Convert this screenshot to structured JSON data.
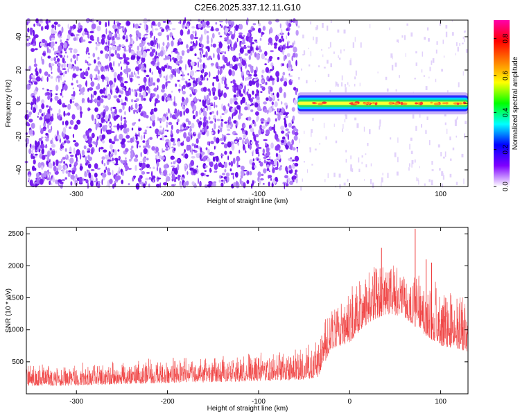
{
  "title": "C2E6.2025.337.12.11.G10",
  "chart_data": [
    {
      "type": "heatmap",
      "name": "spectrogram",
      "xlabel": "Height of straight line (km)",
      "ylabel": "Frequency (Hz)",
      "xlim": [
        -355,
        130
      ],
      "ylim": [
        -50,
        50
      ],
      "xticks": [
        -300,
        -200,
        -100,
        0,
        100
      ],
      "xtick_labels": [
        "-300",
        "-200",
        "-100",
        "0",
        "100"
      ],
      "yticks": [
        -40,
        -20,
        0,
        20,
        40
      ],
      "ytick_labels": [
        "-40",
        "-20",
        "0",
        "20",
        "40"
      ],
      "noise_region_end_km": -57,
      "signal_start_km": -57,
      "signal_frequency_hz": 0,
      "signal_halfwidth_hz": [
        1.6,
        3.0
      ],
      "colorbar": {
        "label": "Normalized spectral amplitude",
        "range": [
          0.0,
          0.9
        ],
        "ticks": [
          0.0,
          0.2,
          0.4,
          0.6,
          0.8
        ],
        "tick_labels": [
          "0.0",
          "0.2",
          "0.4",
          "0.6",
          "0.8"
        ],
        "colormap": [
          "#ffffff",
          "#7f00ff",
          "#0000ff",
          "#00ffff",
          "#00ff00",
          "#ffff00",
          "#ff8000",
          "#ff0000",
          "#ff00aa"
        ]
      }
    },
    {
      "type": "line",
      "name": "snr",
      "xlabel": "Height of straight line (km)",
      "ylabel": "SNR (10 * v/v)",
      "xlim": [
        -355,
        130
      ],
      "ylim": [
        0,
        2600
      ],
      "xticks": [
        -300,
        -200,
        -100,
        0,
        100
      ],
      "xtick_labels": [
        "-300",
        "-200",
        "-100",
        "0",
        "100"
      ],
      "yticks": [
        500,
        1000,
        1500,
        2000,
        2500
      ],
      "ytick_labels": [
        "500",
        "1000",
        "1500",
        "2000",
        "2500"
      ],
      "color": "#ee3333",
      "envelope": {
        "x": [
          -355,
          -300,
          -250,
          -200,
          -150,
          -100,
          -50,
          -35,
          -20,
          0,
          20,
          40,
          60,
          80,
          100,
          120,
          130
        ],
        "baseline": [
          120,
          130,
          150,
          170,
          180,
          200,
          220,
          260,
          700,
          800,
          1100,
          1250,
          1200,
          950,
          750,
          700,
          650
        ],
        "peak": [
          420,
          440,
          470,
          520,
          560,
          620,
          680,
          800,
          1400,
          1650,
          1950,
          2050,
          1950,
          1800,
          1650,
          1550,
          1500
        ]
      },
      "spikes": [
        {
          "x": 72,
          "y": 2580
        },
        {
          "x": 84,
          "y": 2100
        },
        {
          "x": 35,
          "y": 2280
        },
        {
          "x": 90,
          "y": 2050
        }
      ]
    }
  ]
}
